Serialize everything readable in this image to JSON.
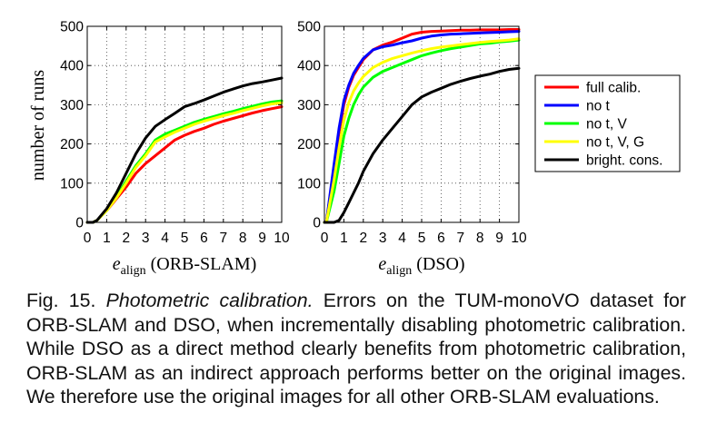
{
  "legend": {
    "entries": [
      {
        "label": "full calib.",
        "color": "#ff0000"
      },
      {
        "label": "no t",
        "color": "#0000ff"
      },
      {
        "label": "no t, V",
        "color": "#00ff00"
      },
      {
        "label": "no t, V, G",
        "color": "#ffff00"
      },
      {
        "label": "bright. cons.",
        "color": "#000000"
      }
    ]
  },
  "caption": {
    "prefix": "Fig. 15. ",
    "title": "Photometric calibration.",
    "body": " Errors on the TUM-monoVO dataset for ORB-SLAM and DSO, when incrementally disabling photometric calibration. While DSO as a direct method clearly benefits from photometric calibration, ORB-SLAM as an indirect approach performs better on the original images. We therefore use the original images for all other ORB-SLAM evaluations."
  },
  "chart_data": [
    {
      "type": "line",
      "ylabel": "number of runs",
      "xlabel_symbol": "e",
      "xlabel_subscript": "align",
      "xlabel_suffix": "(ORB-SLAM)",
      "xlim": [
        0,
        10
      ],
      "ylim": [
        0,
        500
      ],
      "xticks": [
        "0",
        "1",
        "2",
        "3",
        "4",
        "5",
        "6",
        "7",
        "8",
        "9",
        "10"
      ],
      "yticks": [
        "0",
        "100",
        "200",
        "300",
        "400",
        "500"
      ],
      "grid": true,
      "x": [
        0,
        0.3,
        0.5,
        1,
        1.5,
        2,
        2.5,
        3,
        3.5,
        4,
        4.5,
        5,
        5.5,
        6,
        6.5,
        7,
        7.5,
        8,
        8.5,
        9,
        9.5,
        10
      ],
      "series": [
        {
          "name": "full calib.",
          "color": "#ff0000",
          "values": [
            0,
            0,
            5,
            30,
            60,
            90,
            125,
            150,
            170,
            190,
            210,
            222,
            232,
            240,
            250,
            258,
            265,
            272,
            279,
            285,
            290,
            295
          ]
        },
        {
          "name": "no t, V",
          "color": "#00ff00",
          "values": [
            0,
            0,
            5,
            30,
            65,
            105,
            145,
            175,
            210,
            225,
            235,
            245,
            255,
            263,
            270,
            277,
            283,
            290,
            296,
            302,
            307,
            310
          ]
        },
        {
          "name": "no t, V, G",
          "color": "#ffff00",
          "values": [
            0,
            0,
            5,
            30,
            62,
            100,
            140,
            170,
            205,
            218,
            230,
            240,
            250,
            258,
            265,
            272,
            278,
            285,
            291,
            297,
            302,
            305
          ]
        },
        {
          "name": "bright. cons.",
          "color": "#000000",
          "values": [
            0,
            0,
            5,
            35,
            75,
            125,
            175,
            215,
            245,
            262,
            278,
            295,
            303,
            312,
            322,
            332,
            340,
            348,
            354,
            358,
            363,
            368
          ]
        }
      ]
    },
    {
      "type": "line",
      "ylabel": "",
      "xlabel_symbol": "e",
      "xlabel_subscript": "align",
      "xlabel_suffix": "(DSO)",
      "xlim": [
        0,
        10
      ],
      "ylim": [
        0,
        500
      ],
      "xticks": [
        "0",
        "1",
        "2",
        "3",
        "4",
        "5",
        "6",
        "7",
        "8",
        "9",
        "10"
      ],
      "yticks": [
        "0",
        "100",
        "200",
        "300",
        "400",
        "500"
      ],
      "grid": true,
      "x": [
        0,
        0.1,
        0.5,
        0.75,
        1,
        1.25,
        1.5,
        1.75,
        2,
        2.5,
        3,
        3.5,
        4,
        4.5,
        5,
        5.5,
        6,
        6.5,
        7,
        7.5,
        8,
        8.5,
        9,
        9.5,
        10
      ],
      "series": [
        {
          "name": "full calib.",
          "color": "#ff0000",
          "values": [
            0,
            0,
            140,
            230,
            300,
            345,
            375,
            395,
            415,
            440,
            452,
            460,
            470,
            480,
            485,
            487,
            488,
            489,
            490,
            490,
            491,
            491,
            491,
            492,
            492
          ]
        },
        {
          "name": "no t",
          "color": "#0000ff",
          "values": [
            0,
            0,
            150,
            240,
            310,
            350,
            380,
            400,
            418,
            440,
            448,
            452,
            458,
            463,
            470,
            475,
            478,
            480,
            481,
            482,
            483,
            484,
            485,
            486,
            487
          ]
        },
        {
          "name": "no t, V",
          "color": "#00ff00",
          "values": [
            0,
            0,
            80,
            150,
            220,
            265,
            300,
            325,
            345,
            370,
            385,
            395,
            405,
            415,
            425,
            432,
            438,
            443,
            447,
            451,
            455,
            457,
            460,
            462,
            465
          ]
        },
        {
          "name": "no t, V, G",
          "color": "#ffff00",
          "values": [
            0,
            0,
            110,
            190,
            260,
            305,
            335,
            355,
            372,
            395,
            408,
            418,
            425,
            432,
            438,
            443,
            447,
            450,
            453,
            456,
            459,
            461,
            463,
            465,
            468
          ]
        },
        {
          "name": "bright. cons.",
          "color": "#000000",
          "values": [
            0,
            0,
            0,
            5,
            25,
            50,
            75,
            100,
            130,
            175,
            210,
            240,
            270,
            300,
            320,
            332,
            342,
            352,
            360,
            367,
            373,
            378,
            385,
            390,
            393
          ]
        }
      ]
    }
  ]
}
